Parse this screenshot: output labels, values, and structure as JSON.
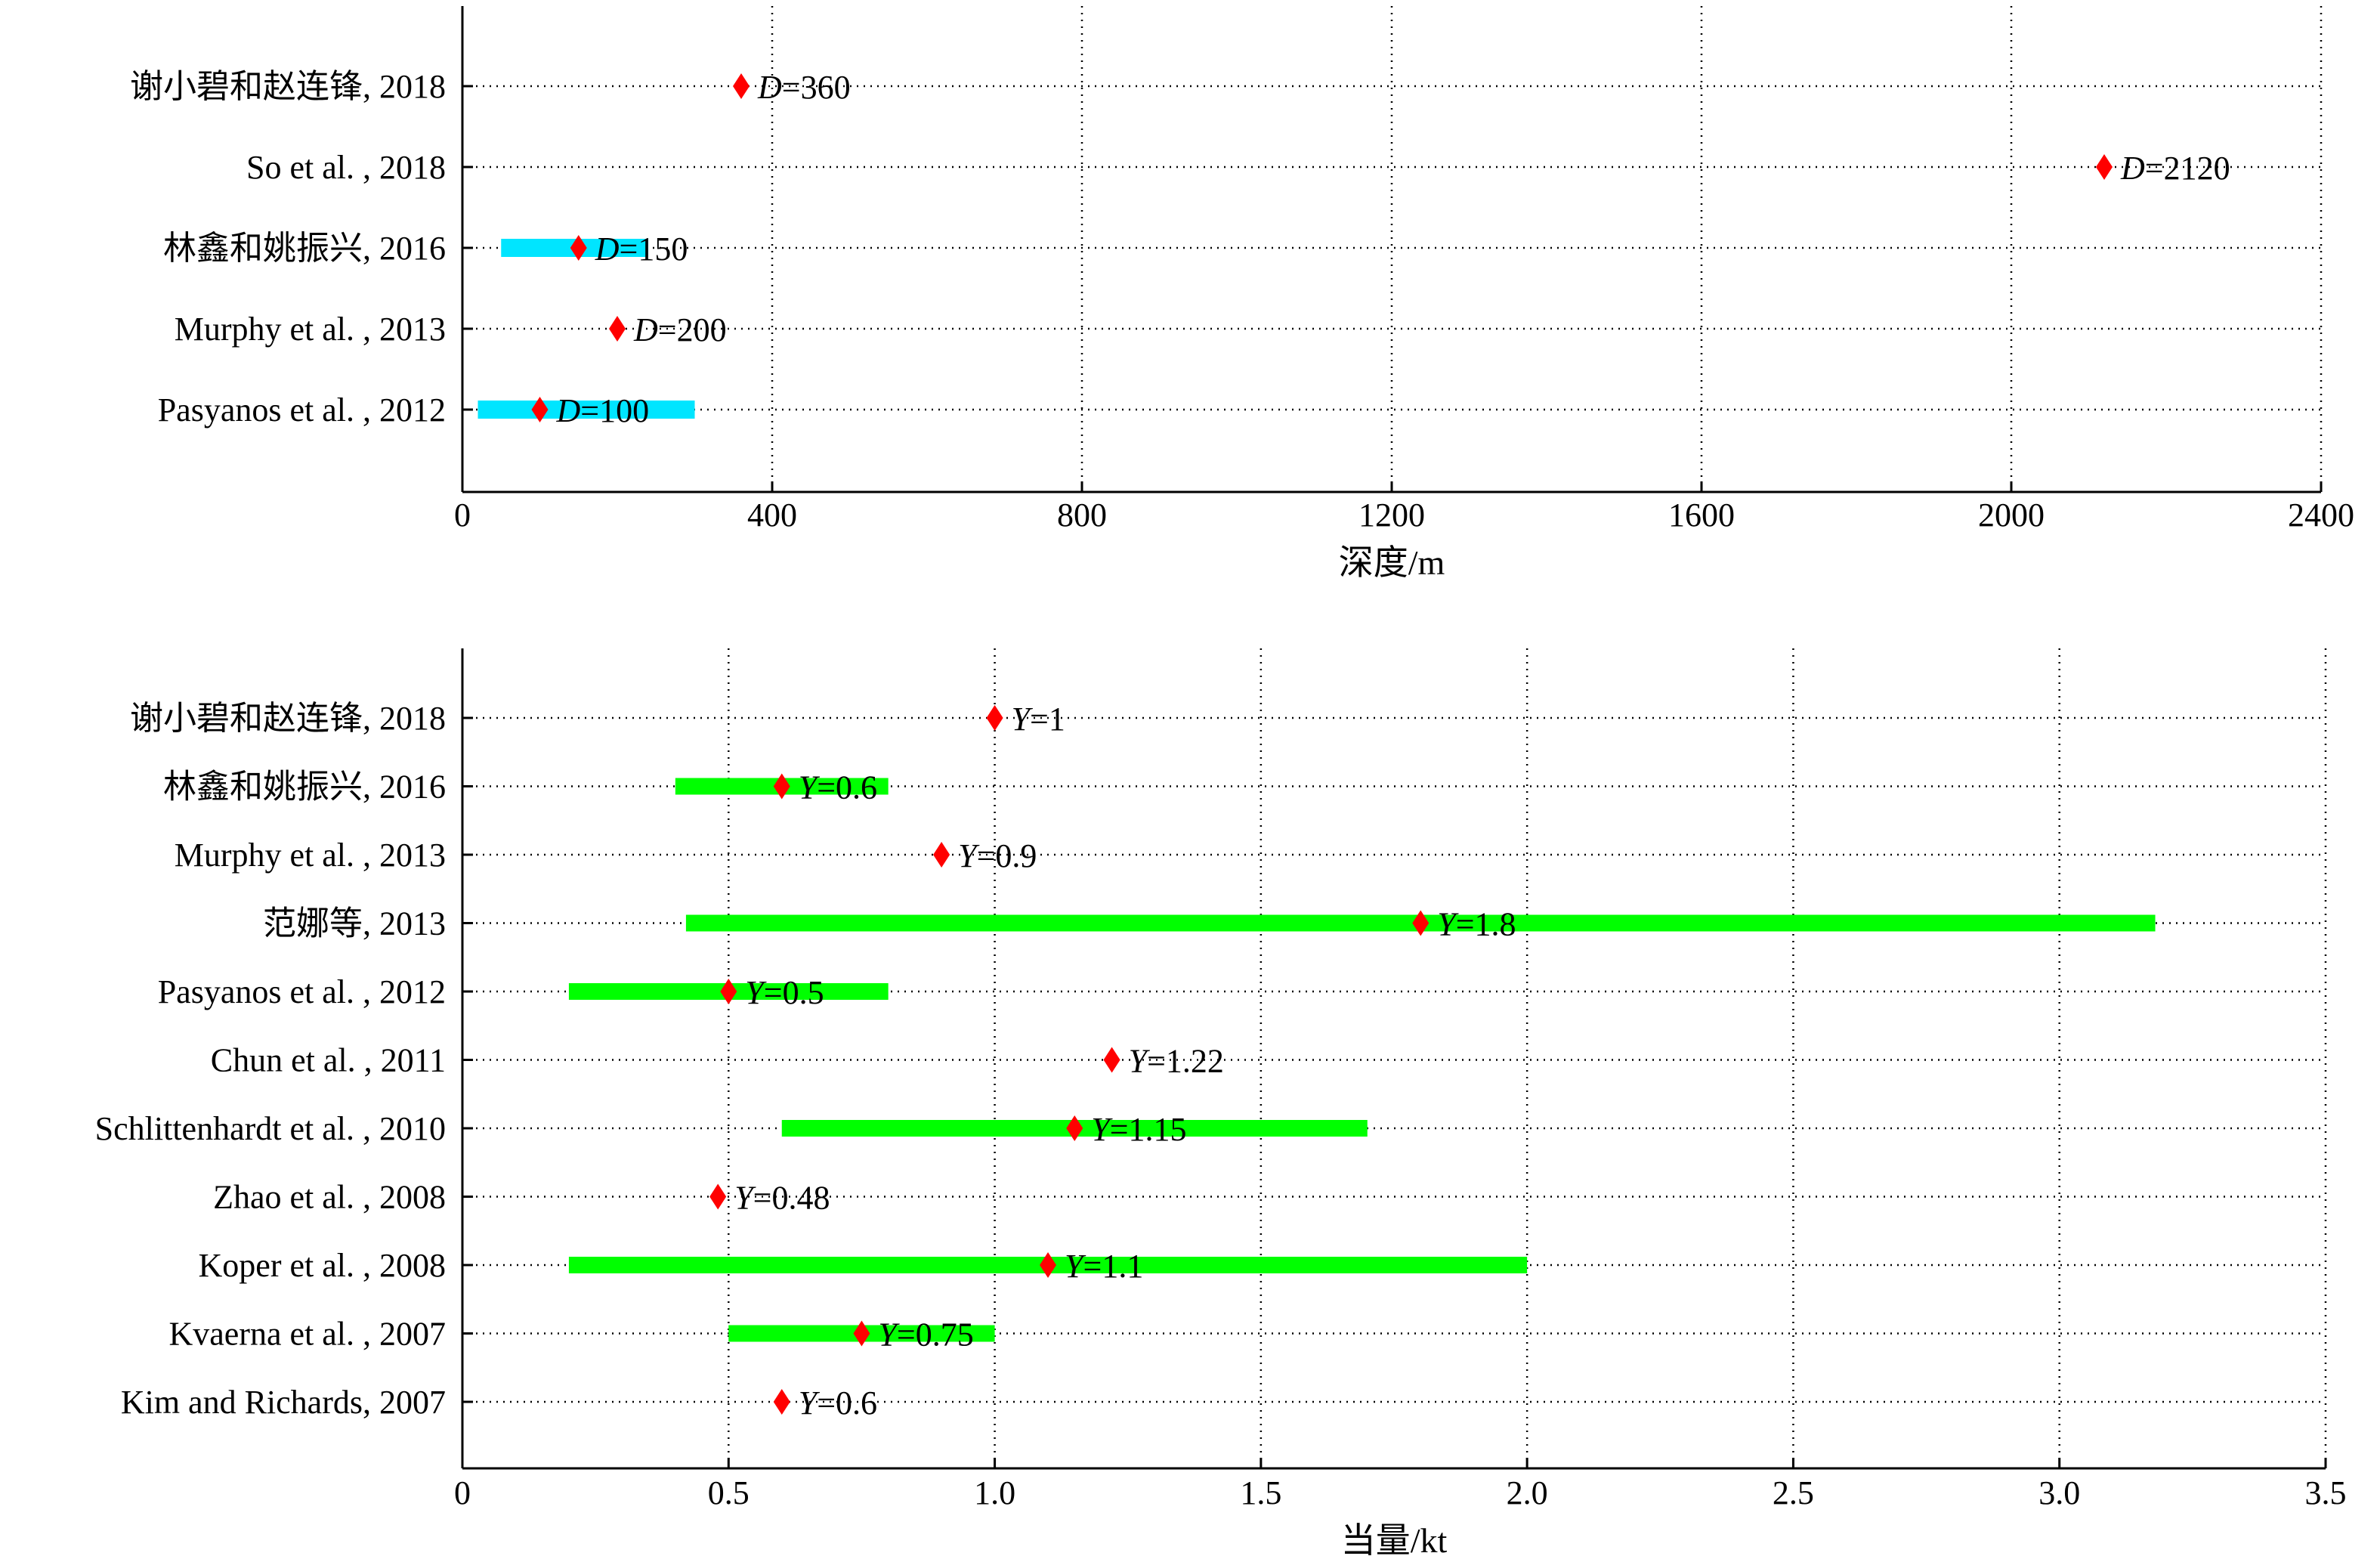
{
  "chart_data": [
    {
      "type": "range-dot",
      "xlabel": "深度/m",
      "xlim": [
        0,
        2400
      ],
      "xticks": [
        0,
        400,
        800,
        1200,
        1600,
        2000,
        2400
      ],
      "xtick_labels": [
        "0",
        "400",
        "800",
        "1200",
        "1600",
        "2000",
        "2400"
      ],
      "grid": true,
      "grid_style": "dotted",
      "label_var": "D",
      "range_color": "#00e5ff",
      "marker_color": "#ff0000",
      "marker": "diamond",
      "rows": [
        {
          "label": "谢小碧和赵连锋, 2018",
          "value": 360,
          "value_text": "=360",
          "range": null
        },
        {
          "label": "So et al. , 2018",
          "value": 2120,
          "value_text": "=2120",
          "range": null
        },
        {
          "label": "林鑫和姚振兴, 2016",
          "value": 150,
          "value_text": "=150",
          "range": [
            50,
            240
          ]
        },
        {
          "label": "Murphy et al. , 2013",
          "value": 200,
          "value_text": "=200",
          "range": null
        },
        {
          "label": "Pasyanos et al. , 2012",
          "value": 100,
          "value_text": "=100",
          "range": [
            20,
            300
          ]
        }
      ]
    },
    {
      "type": "range-dot",
      "xlabel": "当量/kt",
      "xlim": [
        0,
        3.5
      ],
      "xticks": [
        0,
        0.5,
        1.0,
        1.5,
        2.0,
        2.5,
        3.0,
        3.5
      ],
      "xtick_labels": [
        "0",
        "0.5",
        "1.0",
        "1.5",
        "2.0",
        "2.5",
        "3.0",
        "3.5"
      ],
      "grid": true,
      "grid_style": "dotted",
      "label_var": "Y",
      "range_color": "#00ff00",
      "marker_color": "#ff0000",
      "marker": "diamond",
      "rows": [
        {
          "label": "谢小碧和赵连锋, 2018",
          "value": 1.0,
          "value_text": "=1",
          "range": null
        },
        {
          "label": "林鑫和姚振兴, 2016",
          "value": 0.6,
          "value_text": "=0.6",
          "range": [
            0.4,
            0.8
          ]
        },
        {
          "label": "Murphy et al. , 2013",
          "value": 0.9,
          "value_text": "=0.9",
          "range": null
        },
        {
          "label": "范娜等, 2013",
          "value": 1.8,
          "value_text": "=1.8",
          "range": [
            0.42,
            3.18
          ]
        },
        {
          "label": "Pasyanos et al. , 2012",
          "value": 0.5,
          "value_text": "=0.5",
          "range": [
            0.2,
            0.8
          ]
        },
        {
          "label": "Chun et al. , 2011",
          "value": 1.22,
          "value_text": "=1.22",
          "range": null
        },
        {
          "label": "Schlittenhardt et al. , 2010",
          "value": 1.15,
          "value_text": "=1.15",
          "range": [
            0.6,
            1.7
          ]
        },
        {
          "label": "Zhao et al. , 2008",
          "value": 0.48,
          "value_text": "=0.48",
          "range": null
        },
        {
          "label": "Koper et al. , 2008",
          "value": 1.1,
          "value_text": "=1.1",
          "range": [
            0.2,
            2.0
          ]
        },
        {
          "label": "Kvaerna et al. , 2007",
          "value": 0.75,
          "value_text": "=0.75",
          "range": [
            0.5,
            1.0
          ]
        },
        {
          "label": "Kim and Richards, 2007",
          "value": 0.6,
          "value_text": "=0.6",
          "range": null
        }
      ]
    }
  ]
}
